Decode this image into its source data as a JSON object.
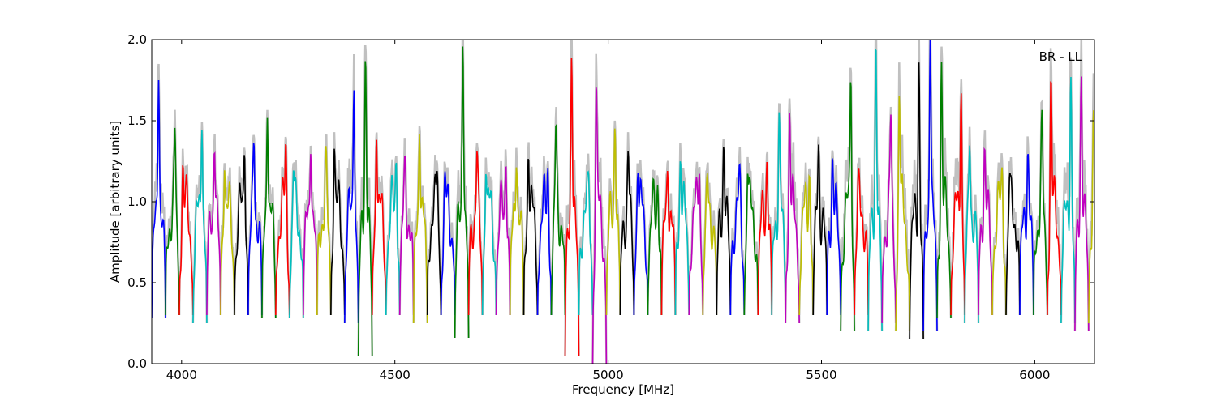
{
  "chart_data": {
    "type": "line",
    "title": "",
    "annotation": "BR - LL",
    "xlabel": "Frequency [MHz]",
    "ylabel": "Amplitude [arbitrary units]",
    "xlim": [
      3930,
      6140
    ],
    "ylim": [
      0.0,
      2.0
    ],
    "xticks": [
      4000,
      4500,
      5000,
      5500,
      6000
    ],
    "xtick_labels": [
      "4000",
      "4500",
      "5000",
      "5500",
      "6000"
    ],
    "yticks": [
      0.0,
      0.5,
      1.0,
      1.5,
      2.0
    ],
    "ytick_labels": [
      "0.0",
      "0.5",
      "1.0",
      "1.5",
      "2.0"
    ],
    "grid": false,
    "channel_start_mhz": 3930,
    "channel_width_mhz": 32.3,
    "color_cycle": [
      "#0000ff",
      "#008000",
      "#ff0000",
      "#00bfbf",
      "#bf00bf",
      "#bfbf00",
      "#000000"
    ],
    "background_series_color": "#c0c0c0",
    "channel_peaks": [
      1.75,
      1.55,
      1.38,
      1.5,
      1.33,
      1.3,
      1.45,
      1.4,
      1.55,
      1.53,
      1.3,
      1.3,
      1.4,
      1.5,
      1.8,
      1.9,
      1.5,
      1.4,
      1.33,
      1.43,
      1.3,
      1.3,
      2.0,
      1.35,
      1.32,
      1.33,
      1.22,
      1.35,
      1.36,
      1.57,
      1.9,
      1.27,
      2.0,
      1.5,
      1.33,
      1.3,
      1.2,
      1.2,
      1.3,
      1.32,
      1.25,
      1.35,
      1.3,
      1.32,
      1.3,
      1.56,
      1.7,
      1.3,
      1.38,
      1.3,
      2.0,
      1.3,
      2.0,
      1.6,
      1.9,
      2.0,
      2.0,
      2.0,
      1.9,
      1.4,
      1.35,
      1.32,
      1.3,
      1.33,
      1.6,
      2.0,
      1.95,
      1.78,
      1.65
    ],
    "channel_mins": [
      0.28,
      0.3,
      0.3,
      0.25,
      0.3,
      0.3,
      0.3,
      0.3,
      0.28,
      0.3,
      0.28,
      0.3,
      0.3,
      0.3,
      0.25,
      0.05,
      0.3,
      0.3,
      0.3,
      0.25,
      0.3,
      0.3,
      0.16,
      0.3,
      0.3,
      0.3,
      0.3,
      0.3,
      0.3,
      0.3,
      0.05,
      0.3,
      0.0,
      0.3,
      0.3,
      0.3,
      0.3,
      0.3,
      0.3,
      0.3,
      0.3,
      0.3,
      0.3,
      0.3,
      0.3,
      0.3,
      0.25,
      0.3,
      0.3,
      0.3,
      0.2,
      0.3,
      0.2,
      0.25,
      0.2,
      0.15,
      0.2,
      0.28,
      0.3,
      0.25,
      0.3,
      0.3,
      0.3,
      0.3,
      0.3,
      0.3,
      0.25,
      0.2,
      0.25
    ]
  }
}
